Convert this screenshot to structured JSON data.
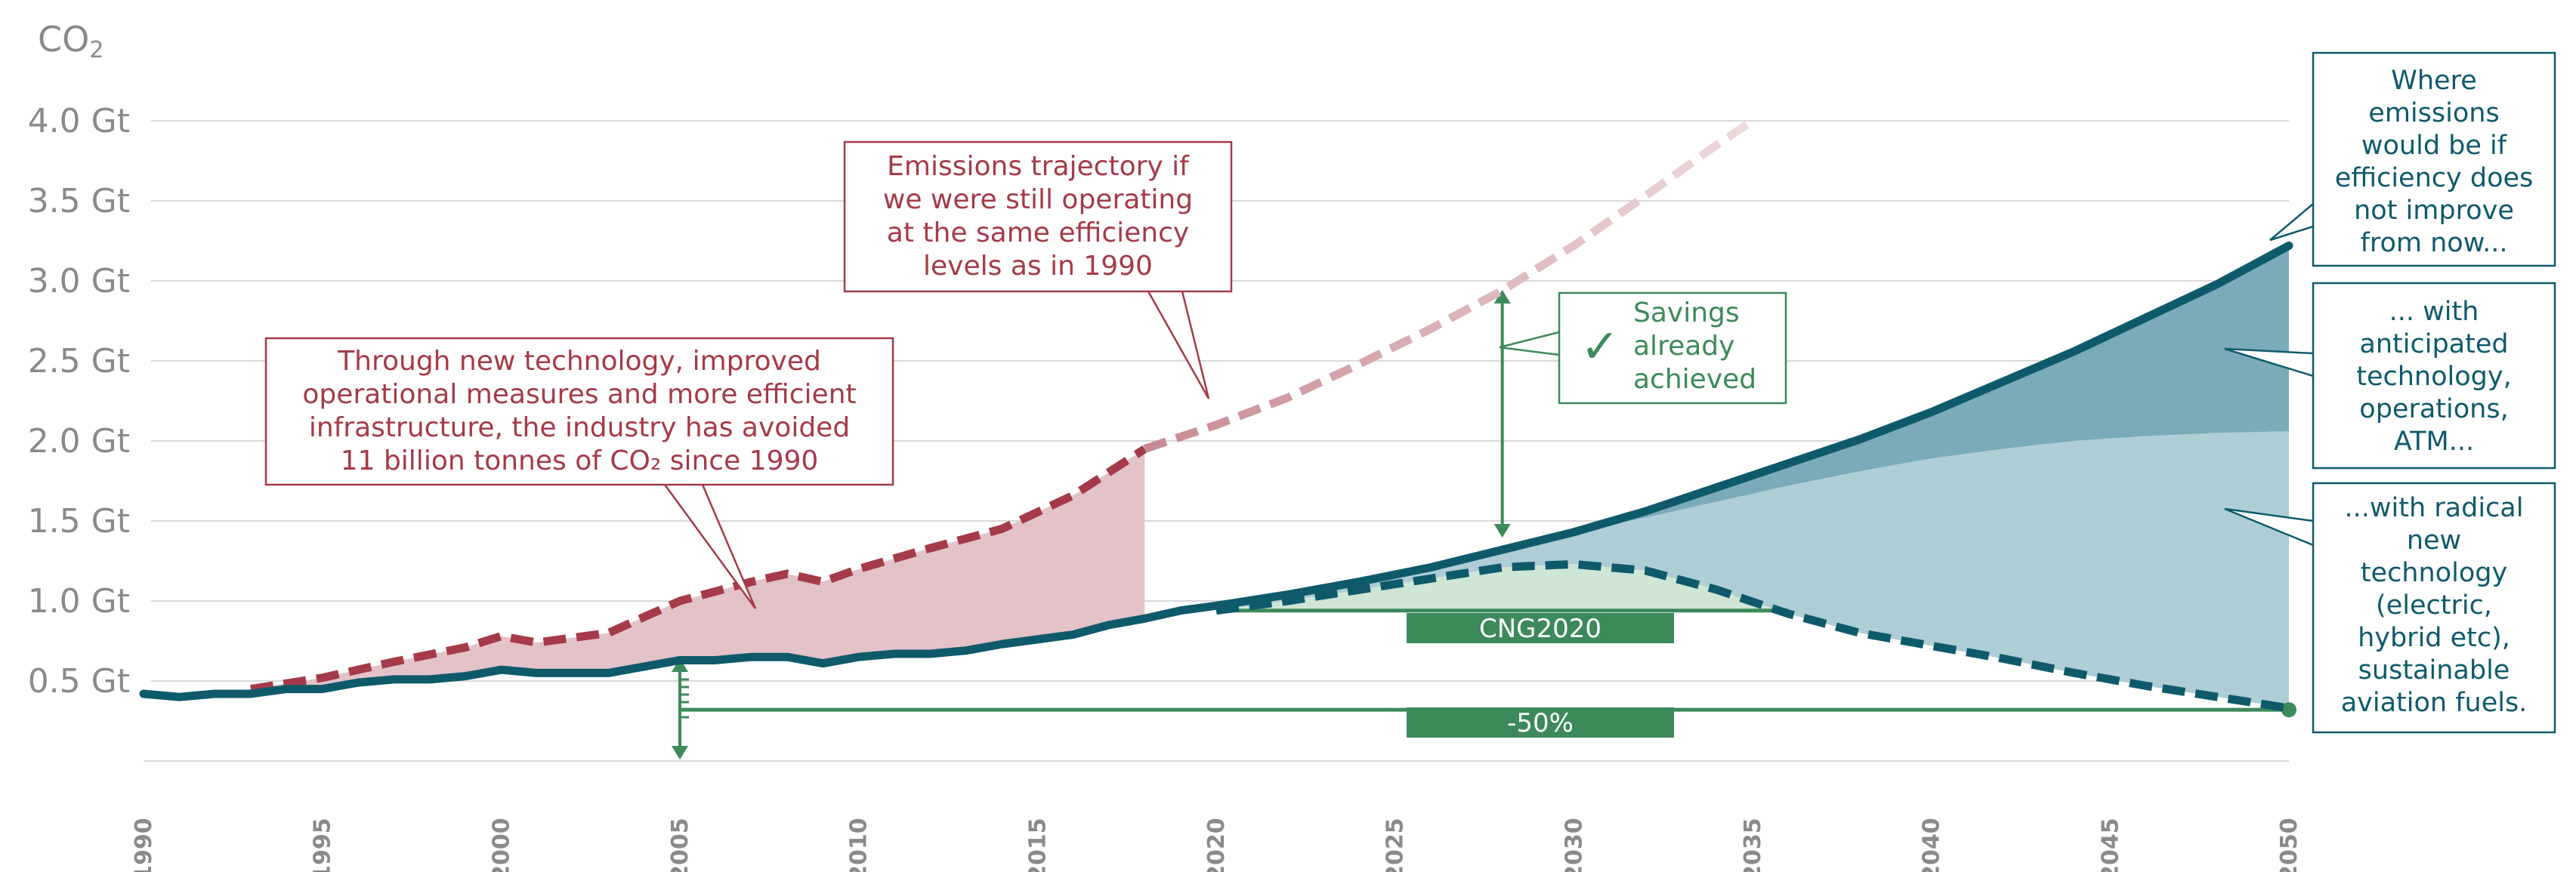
{
  "colors": {
    "actual": "#0e5a6b",
    "baseline1990": "#a53a48",
    "savings_fill": "#e3c2c8",
    "green": "#3c8a5a",
    "light_green_fill": "#cfe6d6",
    "teal_dark_fill": "#7aabb8",
    "teal_light_fill": "#aecdd4",
    "grid": "#d9d9d9",
    "axis_text": "#8a8a8a"
  },
  "chart_data": {
    "type": "line",
    "title": "",
    "ylabel": "CO2",
    "ylabel_main": "CO",
    "ylabel_sub": "2",
    "y_unit": "Gt",
    "xlim": [
      1990,
      2050
    ],
    "ylim": [
      0,
      4.0
    ],
    "y_ticks": [
      0.5,
      1.0,
      1.5,
      2.0,
      2.5,
      3.0,
      3.5,
      4.0
    ],
    "y_tick_labels": [
      "0.5 Gt",
      "1.0 Gt",
      "1.5 Gt",
      "2.0 Gt",
      "2.5 Gt",
      "3.0 Gt",
      "3.5 Gt",
      "4.0 Gt"
    ],
    "x_ticks": [
      1990,
      1995,
      2000,
      2005,
      2010,
      2015,
      2020,
      2025,
      2030,
      2035,
      2040,
      2045,
      2050
    ],
    "x_tick_labels": [
      "1990",
      "1995",
      "2000",
      "2005",
      "2010",
      "2015",
      "2020",
      "2025",
      "2030",
      "2035",
      "2040",
      "2045",
      "2050"
    ],
    "series": [
      {
        "name": "Actual emissions / projection if efficiency does not improve",
        "style": "solid",
        "x": [
          1990,
          1991,
          1992,
          1993,
          1994,
          1995,
          1996,
          1997,
          1998,
          1999,
          2000,
          2001,
          2002,
          2003,
          2004,
          2005,
          2006,
          2007,
          2008,
          2009,
          2010,
          2011,
          2012,
          2013,
          2014,
          2015,
          2016,
          2017,
          2018,
          2019,
          2020,
          2022,
          2024,
          2026,
          2028,
          2030,
          2032,
          2034,
          2036,
          2038,
          2040,
          2042,
          2044,
          2046,
          2048,
          2050
        ],
        "values": [
          0.42,
          0.4,
          0.42,
          0.42,
          0.45,
          0.45,
          0.49,
          0.51,
          0.51,
          0.53,
          0.57,
          0.55,
          0.55,
          0.55,
          0.59,
          0.63,
          0.63,
          0.65,
          0.65,
          0.61,
          0.65,
          0.67,
          0.67,
          0.69,
          0.73,
          0.76,
          0.79,
          0.85,
          0.89,
          0.94,
          0.97,
          1.04,
          1.12,
          1.21,
          1.32,
          1.43,
          1.56,
          1.71,
          1.86,
          2.01,
          2.18,
          2.37,
          2.56,
          2.77,
          2.98,
          3.22
        ]
      },
      {
        "name": "Emissions at 1990 efficiency levels",
        "style": "dashed",
        "x": [
          1993,
          1995,
          1997,
          1999,
          2000,
          2001,
          2003,
          2005,
          2007,
          2008,
          2009,
          2010,
          2012,
          2014,
          2016,
          2018,
          2020,
          2022,
          2024,
          2026,
          2028,
          2030,
          2032,
          2034,
          2035
        ],
        "values": [
          0.45,
          0.52,
          0.62,
          0.71,
          0.78,
          0.74,
          0.8,
          1.0,
          1.12,
          1.17,
          1.12,
          1.2,
          1.33,
          1.45,
          1.66,
          1.95,
          2.1,
          2.27,
          2.48,
          2.7,
          2.94,
          3.22,
          3.53,
          3.85,
          4.0
        ]
      },
      {
        "name": "With radical new technology and sustainable aviation fuels",
        "style": "dashed",
        "x": [
          2020,
          2022,
          2024,
          2026,
          2028,
          2030,
          2032,
          2034,
          2036,
          2038,
          2040,
          2042,
          2044,
          2046,
          2048,
          2050
        ],
        "values": [
          0.94,
          1.0,
          1.07,
          1.14,
          1.21,
          1.23,
          1.19,
          1.07,
          0.92,
          0.8,
          0.72,
          0.64,
          0.55,
          0.47,
          0.4,
          0.33
        ]
      },
      {
        "name": "With anticipated technology, operations, ATM",
        "style": "area-boundary",
        "x": [
          2030,
          2032,
          2034,
          2036,
          2038,
          2040,
          2042,
          2044,
          2046,
          2048,
          2050
        ],
        "values": [
          1.43,
          1.52,
          1.62,
          1.72,
          1.81,
          1.89,
          1.95,
          2.0,
          2.03,
          2.05,
          2.06
        ]
      }
    ],
    "annotations": {
      "savings_1990": [
        "Through new technology, improved",
        "operational measures and more efficient",
        "infrastructure, the industry has avoided",
        "11 billion tonnes of CO₂ since 1990"
      ],
      "trajectory_1990": [
        "Emissions trajectory if",
        "we were still operating",
        "at the same efficiency",
        "levels as in 1990"
      ],
      "savings_achieved": [
        "Savings",
        "already",
        "achieved"
      ],
      "check_mark": "✓",
      "no_improvement": [
        "Where",
        "emissions",
        "would be if",
        "efficiency does",
        "not improve",
        "from now..."
      ],
      "anticipated_tech": [
        "... with",
        "anticipated",
        "technology,",
        "operations,",
        "ATM..."
      ],
      "radical_tech": [
        "...with radical",
        "new",
        "technology",
        "(electric,",
        "hybrid etc),",
        "sustainable",
        "aviation fuels."
      ],
      "cng2020_label": "CNG2020",
      "cng2020_level": 0.94,
      "cng2020_span": [
        2020,
        2036
      ],
      "halving_label": "-50%",
      "halving_level": 0.32,
      "halving_reference_year": 2005,
      "halving_end_year": 2050
    }
  }
}
